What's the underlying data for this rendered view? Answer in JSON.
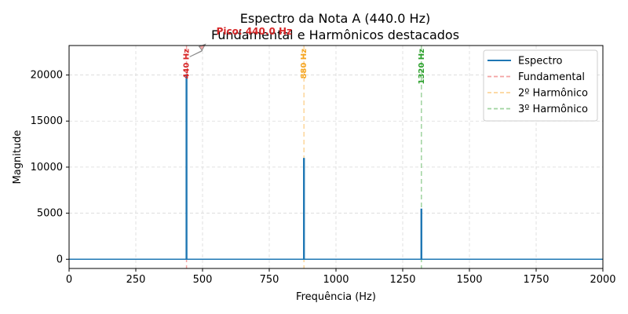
{
  "chart_data": {
    "type": "line",
    "title_line1": "Espectro da Nota A (440.0 Hz)",
    "title_line2": "Fundamental e Harmônicos destacados",
    "xlabel": "Frequência (Hz)",
    "ylabel": "Magnitude",
    "xlim": [
      0,
      2000
    ],
    "ylim": [
      -1000,
      23200
    ],
    "x_ticks": [
      0,
      250,
      500,
      750,
      1000,
      1250,
      1500,
      1750,
      2000
    ],
    "y_ticks": [
      0,
      5000,
      10000,
      15000,
      20000
    ],
    "grid": true,
    "legend_position": "top-right",
    "series": [
      {
        "name": "Espectro",
        "color": "#1f77b4",
        "peaks": [
          {
            "x": 440,
            "y": 20100
          },
          {
            "x": 880,
            "y": 11000
          },
          {
            "x": 1320,
            "y": 5500
          }
        ],
        "baseline": 0
      }
    ],
    "markers": [
      {
        "name": "Fundamental",
        "x": 440,
        "label": "440 Hz",
        "color": "#d62728",
        "line_color": "#f4a3a3"
      },
      {
        "name": "2º Harmônico",
        "x": 880,
        "label": "880 Hz",
        "color": "#f5a623",
        "line_color": "#fcd59a"
      },
      {
        "name": "3º Harmônico",
        "x": 1320,
        "label": "1320 Hz",
        "color": "#2ca02c",
        "line_color": "#9fd39f"
      }
    ],
    "annotation": {
      "text": "Pico: 440.0 Hz",
      "x": 440,
      "y": 20100,
      "color": "#d62728"
    }
  }
}
